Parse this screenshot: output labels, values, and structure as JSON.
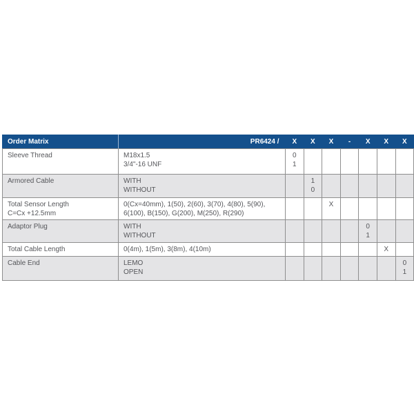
{
  "colors": {
    "header_bg": "#14508c",
    "header_text": "#ffffff",
    "row_alt_bg": "#e4e4e6",
    "row_bg": "#ffffff",
    "border": "#8e8e8e",
    "body_text": "#55565a"
  },
  "order_matrix": {
    "title": "Order Matrix",
    "product_code": "PR6424 /",
    "code_headers": [
      "X",
      "X",
      "X",
      "-",
      "X",
      "X",
      "X"
    ],
    "rows": [
      {
        "label": "Sleeve Thread",
        "options": "M18x1.5\n3/4\"-16 UNF",
        "codes": [
          "0\n1",
          "",
          "",
          "",
          "",
          "",
          ""
        ]
      },
      {
        "label": "Armored Cable",
        "options": "WITH\nWITHOUT",
        "codes": [
          "",
          "1\n0",
          "",
          "",
          "",
          "",
          ""
        ]
      },
      {
        "label": "Total Sensor Length\nC=Cx +12.5mm",
        "options": "0(Cx=40mm), 1(50), 2(60), 3(70), 4(80), 5(90),\n6(100), B(150), G(200), M(250), R(290)",
        "codes": [
          "",
          "",
          "X",
          "",
          "",
          "",
          ""
        ]
      },
      {
        "label": "Adaptor Plug",
        "options": "WITH\nWITHOUT",
        "codes": [
          "",
          "",
          "",
          "",
          "0\n1",
          "",
          ""
        ]
      },
      {
        "label": "Total Cable Length",
        "options": "0(4m), 1(5m), 3(8m), 4(10m)",
        "codes": [
          "",
          "",
          "",
          "",
          "",
          "X",
          ""
        ]
      },
      {
        "label": "Cable End",
        "options": "LEMO\nOPEN",
        "codes": [
          "",
          "",
          "",
          "",
          "",
          "",
          "0\n1"
        ]
      }
    ]
  }
}
